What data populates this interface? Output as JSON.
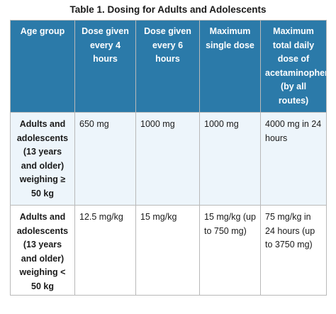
{
  "caption": "Table 1. Dosing for Adults and Adolescents",
  "table": {
    "headers": [
      "Age group",
      "Dose given every 4 hours",
      "Dose given every 6 hours",
      "Maximum single dose",
      "Maximum total daily dose of acetaminophen (by all routes)"
    ],
    "rows": [
      {
        "age_group": "Adults and adolescents (13 years and older) weighing ≥ 50 kg",
        "every_4_hours": "650 mg",
        "every_6_hours": "1000 mg",
        "max_single": "1000 mg",
        "max_daily": "4000 mg in 24 hours"
      },
      {
        "age_group": "Adults and adolescents (13 years and older) weighing < 50 kg",
        "every_4_hours": "12.5 mg/kg",
        "every_6_hours": "15 mg/kg",
        "max_single": "15 mg/kg (up to 750 mg)",
        "max_daily": "75 mg/kg in 24 hours (up to 3750 mg)"
      }
    ]
  }
}
